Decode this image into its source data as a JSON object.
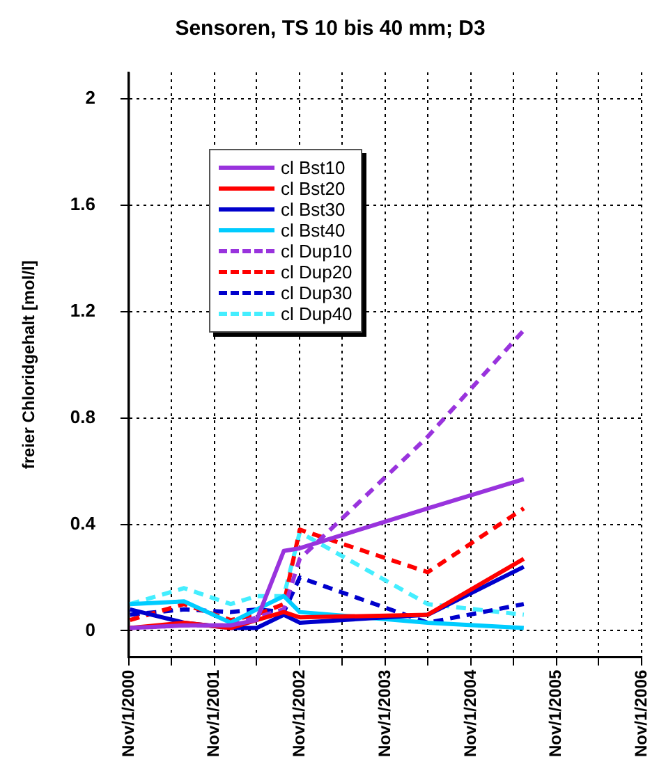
{
  "chart_data": {
    "type": "line",
    "title": "Sensoren, TS 10 bis 40 mm; D3",
    "ylabel": "freier Chloridgehalt [mol/l]",
    "x": [
      "2000-11-06",
      "2001-06-25",
      "2002-01-10",
      "2002-05-01",
      "2002-08-25",
      "2002-11-01",
      "2004-05-01",
      "2005-06-15"
    ],
    "series": [
      {
        "name": "cl Bst10",
        "color": "#9933dd",
        "line_style": "solid",
        "values": [
          0.01,
          0.02,
          0.02,
          0.04,
          0.3,
          0.31,
          0.46,
          0.57
        ]
      },
      {
        "name": "cl Bst20",
        "color": "#ff0000",
        "line_style": "solid",
        "values": [
          0.01,
          0.03,
          0.01,
          0.04,
          0.07,
          0.05,
          0.06,
          0.27
        ]
      },
      {
        "name": "cl Bst30",
        "color": "#0000cc",
        "line_style": "solid",
        "values": [
          0.08,
          0.03,
          0.01,
          0.01,
          0.06,
          0.03,
          0.06,
          0.24
        ]
      },
      {
        "name": "cl Bst40",
        "color": "#00ccff",
        "line_style": "solid",
        "values": [
          0.1,
          0.11,
          0.03,
          0.08,
          0.13,
          0.07,
          0.03,
          0.01
        ]
      },
      {
        "name": "cl Dup10",
        "color": "#9933dd",
        "line_style": "dashed",
        "values": [
          0.01,
          0.02,
          0.02,
          0.05,
          0.08,
          0.27,
          0.73,
          1.13
        ]
      },
      {
        "name": "cl Dup20",
        "color": "#ff0000",
        "line_style": "dashed",
        "values": [
          0.04,
          0.1,
          0.04,
          0.06,
          0.1,
          0.38,
          0.22,
          0.46
        ]
      },
      {
        "name": "cl Dup30",
        "color": "#0000cc",
        "line_style": "dashed",
        "values": [
          0.06,
          0.08,
          0.07,
          0.08,
          0.07,
          0.2,
          0.03,
          0.1
        ]
      },
      {
        "name": "cl Dup40",
        "color": "#44eeff",
        "line_style": "dashed",
        "values": [
          0.1,
          0.16,
          0.1,
          0.13,
          0.13,
          0.37,
          0.1,
          0.06
        ]
      }
    ],
    "xlim": [
      "2000-11-01",
      "2006-11-01"
    ],
    "xticks": [
      {
        "value": "2000-11-01",
        "label": "Nov/1/2000"
      },
      {
        "value": "2001-05-01",
        "label": null
      },
      {
        "value": "2001-11-01",
        "label": "Nov/1/2001"
      },
      {
        "value": "2002-05-01",
        "label": null
      },
      {
        "value": "2002-11-01",
        "label": "Nov/1/2002"
      },
      {
        "value": "2003-05-01",
        "label": null
      },
      {
        "value": "2003-11-01",
        "label": "Nov/1/2003"
      },
      {
        "value": "2004-05-01",
        "label": null
      },
      {
        "value": "2004-11-01",
        "label": "Nov/1/2004"
      },
      {
        "value": "2005-05-01",
        "label": null
      },
      {
        "value": "2005-11-01",
        "label": "Nov/1/2005"
      },
      {
        "value": "2006-05-01",
        "label": null
      },
      {
        "value": "2006-11-01",
        "label": "Nov/1/2006"
      }
    ],
    "ylim": [
      -0.1,
      2.1
    ],
    "yticks": [
      0,
      0.4,
      0.8,
      1.2,
      1.6,
      2
    ],
    "grid": true,
    "legend": "top left",
    "marker": "none"
  }
}
